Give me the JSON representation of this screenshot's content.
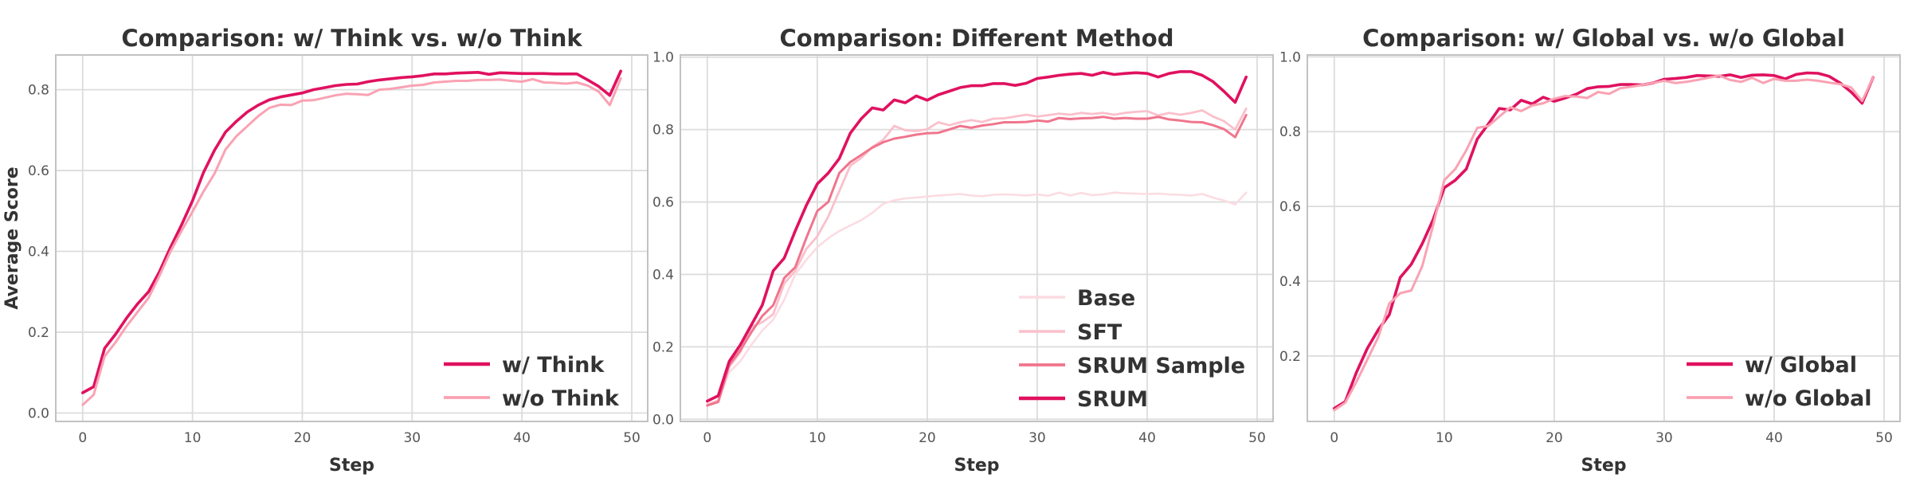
{
  "figure": {
    "background": "#FFFFFF",
    "grid_color": "#DCDCDC",
    "spine_color": "#C2C2C2",
    "title_color": "#333333",
    "tick_color": "#555555"
  },
  "chart_data": [
    {
      "type": "line",
      "title": "Comparison: w/ Think vs. w/o Think",
      "xlabel": "Step",
      "ylabel": "Average Score",
      "x_start": 0,
      "x_step": 1,
      "xlim": [
        -2.45,
        51.45
      ],
      "ylim": [
        -0.021,
        0.886
      ],
      "xticks": [
        0,
        10,
        20,
        30,
        40,
        50
      ],
      "xticklabels": [
        "0",
        "10",
        "20",
        "30",
        "40",
        "50"
      ],
      "yticks": [
        0.0,
        0.2,
        0.4,
        0.6,
        0.8
      ],
      "yticklabels": [
        "0.0",
        "0.2",
        "0.4",
        "0.6",
        "0.8"
      ],
      "grid": true,
      "legend_loc": "lower right",
      "series": [
        {
          "name": "w/ Think",
          "color": "#E0115F",
          "linewidth": 3.6,
          "values": [
            0.05,
            0.065,
            0.16,
            0.195,
            0.235,
            0.27,
            0.3,
            0.35,
            0.41,
            0.465,
            0.525,
            0.595,
            0.65,
            0.695,
            0.722,
            0.745,
            0.762,
            0.775,
            0.782,
            0.787,
            0.792,
            0.8,
            0.805,
            0.81,
            0.813,
            0.814,
            0.82,
            0.824,
            0.827,
            0.83,
            0.832,
            0.835,
            0.839,
            0.839,
            0.841,
            0.842,
            0.843,
            0.838,
            0.842,
            0.841,
            0.84,
            0.84,
            0.84,
            0.839,
            0.839,
            0.839,
            0.824,
            0.808,
            0.786,
            0.846
          ]
        },
        {
          "name": "w/o Think",
          "color": "#F9A2B3",
          "linewidth": 3.0,
          "values": [
            0.02,
            0.045,
            0.14,
            0.175,
            0.215,
            0.25,
            0.285,
            0.34,
            0.4,
            0.45,
            0.498,
            0.548,
            0.592,
            0.652,
            0.685,
            0.71,
            0.735,
            0.755,
            0.763,
            0.762,
            0.773,
            0.774,
            0.78,
            0.786,
            0.79,
            0.789,
            0.787,
            0.8,
            0.802,
            0.806,
            0.81,
            0.812,
            0.818,
            0.82,
            0.822,
            0.822,
            0.824,
            0.824,
            0.825,
            0.822,
            0.82,
            0.826,
            0.818,
            0.817,
            0.815,
            0.818,
            0.81,
            0.795,
            0.762,
            0.828
          ]
        }
      ]
    },
    {
      "type": "line",
      "title": "Comparison: Different Method",
      "xlabel": "Step",
      "ylabel": "",
      "x_start": 0,
      "x_step": 1,
      "xlim": [
        -2.45,
        51.45
      ],
      "ylim": [
        -0.006,
        1.006
      ],
      "xticks": [
        0,
        10,
        20,
        30,
        40,
        50
      ],
      "xticklabels": [
        "0",
        "10",
        "20",
        "30",
        "40",
        "50"
      ],
      "yticks": [
        0.0,
        0.2,
        0.4,
        0.6,
        0.8,
        1.0
      ],
      "yticklabels": [
        "0.0",
        "0.2",
        "0.4",
        "0.6",
        "0.8",
        "1.0"
      ],
      "grid": true,
      "legend_loc": "lower right",
      "series": [
        {
          "name": "Base",
          "color": "#FBDCE2",
          "linewidth": 2.6,
          "values": [
            0.04,
            0.05,
            0.13,
            0.16,
            0.205,
            0.245,
            0.275,
            0.33,
            0.4,
            0.44,
            0.475,
            0.5,
            0.52,
            0.535,
            0.55,
            0.57,
            0.595,
            0.605,
            0.61,
            0.612,
            0.615,
            0.618,
            0.62,
            0.622,
            0.618,
            0.616,
            0.62,
            0.621,
            0.62,
            0.618,
            0.621,
            0.617,
            0.626,
            0.618,
            0.625,
            0.619,
            0.621,
            0.626,
            0.624,
            0.623,
            0.622,
            0.623,
            0.621,
            0.62,
            0.618,
            0.622,
            0.612,
            0.604,
            0.593,
            0.626
          ]
        },
        {
          "name": "SFT",
          "color": "#FAC0CB",
          "linewidth": 2.8,
          "values": [
            0.04,
            0.052,
            0.145,
            0.185,
            0.255,
            0.268,
            0.29,
            0.375,
            0.41,
            0.47,
            0.505,
            0.56,
            0.63,
            0.7,
            0.722,
            0.752,
            0.772,
            0.81,
            0.798,
            0.796,
            0.801,
            0.82,
            0.812,
            0.82,
            0.826,
            0.821,
            0.83,
            0.831,
            0.836,
            0.841,
            0.836,
            0.84,
            0.844,
            0.841,
            0.846,
            0.843,
            0.846,
            0.841,
            0.846,
            0.849,
            0.851,
            0.839,
            0.846,
            0.841,
            0.846,
            0.853,
            0.836,
            0.823,
            0.8,
            0.858
          ]
        },
        {
          "name": "SRUM Sample",
          "color": "#F0758D",
          "linewidth": 3.0,
          "values": [
            0.038,
            0.048,
            0.15,
            0.19,
            0.24,
            0.285,
            0.315,
            0.39,
            0.42,
            0.5,
            0.575,
            0.6,
            0.68,
            0.71,
            0.73,
            0.75,
            0.765,
            0.775,
            0.78,
            0.786,
            0.79,
            0.791,
            0.8,
            0.81,
            0.805,
            0.811,
            0.815,
            0.82,
            0.82,
            0.821,
            0.825,
            0.822,
            0.832,
            0.829,
            0.831,
            0.832,
            0.835,
            0.83,
            0.832,
            0.83,
            0.83,
            0.835,
            0.828,
            0.825,
            0.821,
            0.82,
            0.812,
            0.801,
            0.779,
            0.84
          ]
        },
        {
          "name": "SRUM",
          "color": "#E0115F",
          "linewidth": 3.6,
          "values": [
            0.05,
            0.065,
            0.16,
            0.205,
            0.26,
            0.315,
            0.41,
            0.445,
            0.52,
            0.59,
            0.65,
            0.68,
            0.72,
            0.79,
            0.83,
            0.86,
            0.854,
            0.882,
            0.874,
            0.893,
            0.881,
            0.896,
            0.906,
            0.916,
            0.921,
            0.921,
            0.927,
            0.927,
            0.922,
            0.928,
            0.941,
            0.945,
            0.95,
            0.953,
            0.955,
            0.95,
            0.958,
            0.952,
            0.955,
            0.957,
            0.955,
            0.945,
            0.955,
            0.96,
            0.96,
            0.95,
            0.932,
            0.905,
            0.875,
            0.945
          ]
        }
      ]
    },
    {
      "type": "line",
      "title": "Comparison: w/ Global vs. w/o Global",
      "xlabel": "Step",
      "ylabel": "",
      "x_start": 0,
      "x_step": 1,
      "xlim": [
        -2.45,
        51.45
      ],
      "ylim": [
        0.025,
        1.005
      ],
      "xticks": [
        0,
        10,
        20,
        30,
        40,
        50
      ],
      "xticklabels": [
        "0",
        "10",
        "20",
        "30",
        "40",
        "50"
      ],
      "yticks": [
        0.2,
        0.4,
        0.6,
        0.8,
        1.0
      ],
      "yticklabels": [
        "0.2",
        "0.4",
        "0.6",
        "0.8",
        "1.0"
      ],
      "grid": true,
      "legend_loc": "lower right",
      "series": [
        {
          "name": "w/ Global",
          "color": "#E0115F",
          "linewidth": 3.6,
          "values": [
            0.06,
            0.078,
            0.155,
            0.22,
            0.27,
            0.31,
            0.41,
            0.445,
            0.5,
            0.565,
            0.65,
            0.67,
            0.7,
            0.78,
            0.82,
            0.862,
            0.858,
            0.884,
            0.874,
            0.892,
            0.881,
            0.89,
            0.9,
            0.915,
            0.92,
            0.921,
            0.926,
            0.926,
            0.925,
            0.93,
            0.94,
            0.942,
            0.945,
            0.95,
            0.949,
            0.948,
            0.952,
            0.945,
            0.951,
            0.952,
            0.95,
            0.941,
            0.953,
            0.957,
            0.956,
            0.948,
            0.93,
            0.906,
            0.876,
            0.945
          ]
        },
        {
          "name": "w/o Global",
          "color": "#F9A2B3",
          "linewidth": 3.0,
          "values": [
            0.055,
            0.075,
            0.13,
            0.19,
            0.25,
            0.34,
            0.368,
            0.375,
            0.44,
            0.55,
            0.67,
            0.7,
            0.75,
            0.81,
            0.815,
            0.84,
            0.865,
            0.855,
            0.87,
            0.876,
            0.888,
            0.895,
            0.894,
            0.89,
            0.906,
            0.901,
            0.916,
            0.92,
            0.925,
            0.93,
            0.936,
            0.93,
            0.933,
            0.938,
            0.944,
            0.95,
            0.938,
            0.933,
            0.944,
            0.93,
            0.941,
            0.936,
            0.936,
            0.939,
            0.936,
            0.931,
            0.927,
            0.918,
            0.882,
            0.945
          ]
        }
      ]
    }
  ]
}
